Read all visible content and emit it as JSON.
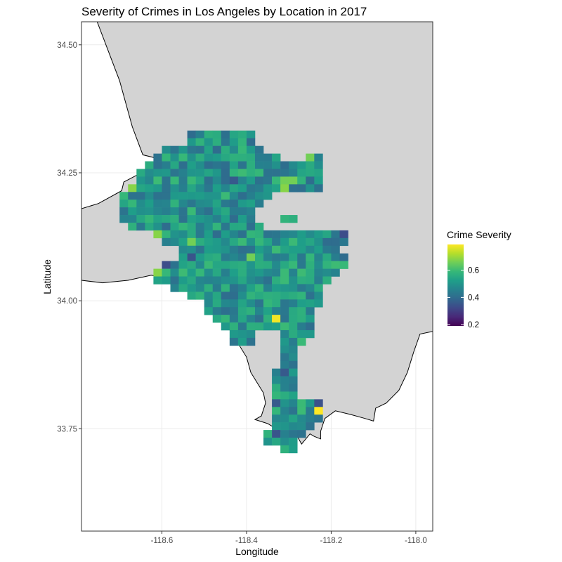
{
  "chart_data": {
    "type": "heatmap",
    "title": "Severity of Crimes in Los Angeles by Location in 2017",
    "xlabel": "Longitude",
    "ylabel": "Latitude",
    "xlim": [
      -118.79,
      -117.96
    ],
    "ylim": [
      33.55,
      34.545
    ],
    "x_ticks": [
      -118.6,
      -118.4,
      -118.2,
      -118.0
    ],
    "x_tick_labels": [
      "-118.6",
      "-118.4",
      "-118.2",
      "-118.0"
    ],
    "y_ticks": [
      33.75,
      34.0,
      34.25,
      34.5
    ],
    "y_tick_labels": [
      "33.75",
      "34.00",
      "34.25",
      "34.50"
    ],
    "grid": true,
    "legend": {
      "title": "Crime Severity",
      "position": "right",
      "min": 0.19,
      "max": 0.79,
      "ticks": [
        0.2,
        0.4,
        0.6
      ],
      "tick_labels": [
        "0.2",
        "0.4",
        "0.6"
      ],
      "palette": [
        "#440154",
        "#482878",
        "#3e4989",
        "#31688e",
        "#26828e",
        "#1f9e89",
        "#35b779",
        "#6ece58",
        "#b5de2b",
        "#fde725"
      ]
    },
    "cell_size_deg": [
      0.02,
      0.015
    ],
    "region_rows": [
      {
        "lat": 34.325,
        "lon_ranges": [
          [
            -118.53,
            -118.39
          ]
        ]
      },
      {
        "lat": 34.31,
        "lon_ranges": [
          [
            -118.53,
            -118.39
          ]
        ]
      },
      {
        "lat": 34.295,
        "lon_ranges": [
          [
            -118.59,
            -118.37
          ]
        ]
      },
      {
        "lat": 34.28,
        "lon_ranges": [
          [
            -118.61,
            -118.33
          ],
          [
            -118.25,
            -118.23
          ]
        ]
      },
      {
        "lat": 34.265,
        "lon_ranges": [
          [
            -118.63,
            -118.23
          ]
        ]
      },
      {
        "lat": 34.25,
        "lon_ranges": [
          [
            -118.65,
            -118.23
          ]
        ]
      },
      {
        "lat": 34.235,
        "lon_ranges": [
          [
            -118.65,
            -118.23
          ]
        ]
      },
      {
        "lat": 34.22,
        "lon_ranges": [
          [
            -118.67,
            -118.23
          ]
        ]
      },
      {
        "lat": 34.205,
        "lon_ranges": [
          [
            -118.69,
            -118.35
          ]
        ]
      },
      {
        "lat": 34.19,
        "lon_ranges": [
          [
            -118.69,
            -118.37
          ]
        ]
      },
      {
        "lat": 34.175,
        "lon_ranges": [
          [
            -118.69,
            -118.39
          ]
        ]
      },
      {
        "lat": 34.16,
        "lon_ranges": [
          [
            -118.69,
            -118.39
          ],
          [
            -118.31,
            -118.29
          ]
        ]
      },
      {
        "lat": 34.145,
        "lon_ranges": [
          [
            -118.67,
            -118.37
          ]
        ]
      },
      {
        "lat": 34.13,
        "lon_ranges": [
          [
            -118.61,
            -118.17
          ]
        ]
      },
      {
        "lat": 34.115,
        "lon_ranges": [
          [
            -118.59,
            -118.17
          ]
        ]
      },
      {
        "lat": 34.1,
        "lon_ranges": [
          [
            -118.55,
            -118.19
          ]
        ]
      },
      {
        "lat": 34.085,
        "lon_ranges": [
          [
            -118.55,
            -118.17
          ]
        ]
      },
      {
        "lat": 34.07,
        "lon_ranges": [
          [
            -118.59,
            -118.17
          ]
        ]
      },
      {
        "lat": 34.055,
        "lon_ranges": [
          [
            -118.61,
            -118.19
          ]
        ]
      },
      {
        "lat": 34.04,
        "lon_ranges": [
          [
            -118.61,
            -118.21
          ]
        ]
      },
      {
        "lat": 34.025,
        "lon_ranges": [
          [
            -118.57,
            -118.23
          ]
        ]
      },
      {
        "lat": 34.01,
        "lon_ranges": [
          [
            -118.53,
            -118.23
          ]
        ]
      },
      {
        "lat": 33.995,
        "lon_ranges": [
          [
            -118.49,
            -118.23
          ]
        ]
      },
      {
        "lat": 33.98,
        "lon_ranges": [
          [
            -118.49,
            -118.25
          ]
        ]
      },
      {
        "lat": 33.965,
        "lon_ranges": [
          [
            -118.47,
            -118.25
          ]
        ]
      },
      {
        "lat": 33.95,
        "lon_ranges": [
          [
            -118.45,
            -118.25
          ]
        ]
      },
      {
        "lat": 33.935,
        "lon_ranges": [
          [
            -118.43,
            -118.39
          ],
          [
            -118.31,
            -118.25
          ]
        ]
      },
      {
        "lat": 33.92,
        "lon_ranges": [
          [
            -118.43,
            -118.39
          ],
          [
            -118.31,
            -118.27
          ]
        ]
      },
      {
        "lat": 33.905,
        "lon_ranges": [
          [
            -118.31,
            -118.29
          ]
        ]
      },
      {
        "lat": 33.89,
        "lon_ranges": [
          [
            -118.31,
            -118.29
          ]
        ]
      },
      {
        "lat": 33.875,
        "lon_ranges": [
          [
            -118.31,
            -118.29
          ]
        ]
      },
      {
        "lat": 33.86,
        "lon_ranges": [
          [
            -118.33,
            -118.29
          ]
        ]
      },
      {
        "lat": 33.845,
        "lon_ranges": [
          [
            -118.33,
            -118.29
          ]
        ]
      },
      {
        "lat": 33.83,
        "lon_ranges": [
          [
            -118.33,
            -118.29
          ]
        ]
      },
      {
        "lat": 33.815,
        "lon_ranges": [
          [
            -118.33,
            -118.29
          ]
        ]
      },
      {
        "lat": 33.8,
        "lon_ranges": [
          [
            -118.33,
            -118.23
          ]
        ]
      },
      {
        "lat": 33.785,
        "lon_ranges": [
          [
            -118.33,
            -118.23
          ]
        ]
      },
      {
        "lat": 33.77,
        "lon_ranges": [
          [
            -118.33,
            -118.23
          ]
        ]
      },
      {
        "lat": 33.755,
        "lon_ranges": [
          [
            -118.33,
            -118.25
          ]
        ]
      },
      {
        "lat": 33.74,
        "lon_ranges": [
          [
            -118.35,
            -118.27
          ]
        ]
      },
      {
        "lat": 33.725,
        "lon_ranges": [
          [
            -118.35,
            -118.29
          ]
        ]
      },
      {
        "lat": 33.71,
        "lon_ranges": [
          [
            -118.31,
            -118.29
          ]
        ]
      }
    ],
    "highlight_cells": [
      {
        "lon": -118.23,
        "lat": 33.785,
        "value": 0.79
      },
      {
        "lon": -118.33,
        "lat": 33.965,
        "value": 0.78
      },
      {
        "lon": -118.61,
        "lat": 34.085,
        "value": 0.19
      },
      {
        "lon": -118.59,
        "lat": 34.07,
        "value": 0.33
      },
      {
        "lon": -118.53,
        "lat": 34.085,
        "value": 0.35
      },
      {
        "lon": -118.61,
        "lat": 34.055,
        "value": 0.68
      },
      {
        "lon": -118.61,
        "lat": 34.13,
        "value": 0.68
      },
      {
        "lon": -118.67,
        "lat": 34.22,
        "value": 0.68
      },
      {
        "lon": -118.25,
        "lat": 34.28,
        "value": 0.66
      },
      {
        "lon": -118.31,
        "lat": 34.235,
        "value": 0.66
      },
      {
        "lon": -118.29,
        "lat": 34.235,
        "value": 0.66
      },
      {
        "lon": -118.31,
        "lat": 34.22,
        "value": 0.68
      },
      {
        "lon": -118.39,
        "lat": 34.085,
        "value": 0.66
      },
      {
        "lon": -118.23,
        "lat": 33.845,
        "value": 0.68
      },
      {
        "lon": -118.17,
        "lat": 34.13,
        "value": 0.33
      },
      {
        "lon": -118.23,
        "lat": 33.8,
        "value": 0.34
      },
      {
        "lon": -118.21,
        "lat": 33.8,
        "value": 0.32
      },
      {
        "lon": -118.23,
        "lat": 33.74,
        "value": 0.32
      },
      {
        "lon": -118.33,
        "lat": 33.74,
        "value": 0.35
      },
      {
        "lon": -118.53,
        "lat": 34.115,
        "value": 0.66
      },
      {
        "lon": -118.43,
        "lat": 34.235,
        "value": 0.36
      },
      {
        "lon": -118.39,
        "lat": 34.28,
        "value": 0.56
      },
      {
        "lon": -118.31,
        "lat": 33.86,
        "value": 0.36
      },
      {
        "lon": -118.33,
        "lat": 33.8,
        "value": 0.36
      }
    ],
    "default_value_range": [
      0.4,
      0.6
    ],
    "land_shape": [
      [
        -118.753,
        34.545
      ],
      [
        -118.7,
        34.43
      ],
      [
        -118.67,
        34.34
      ],
      [
        -118.645,
        34.285
      ],
      [
        -118.62,
        34.28
      ],
      [
        -118.6,
        34.262
      ],
      [
        -118.6,
        34.255
      ],
      [
        -118.66,
        34.245
      ],
      [
        -118.69,
        34.232
      ],
      [
        -118.695,
        34.215
      ],
      [
        -118.75,
        34.19
      ],
      [
        -118.79,
        34.18
      ],
      [
        -118.79,
        34.04
      ],
      [
        -118.74,
        34.035
      ],
      [
        -118.68,
        34.04
      ],
      [
        -118.625,
        34.05
      ],
      [
        -118.56,
        34.04
      ],
      [
        -118.52,
        34.03
      ],
      [
        -118.48,
        34.02
      ],
      [
        -118.45,
        33.99
      ],
      [
        -118.43,
        33.93
      ],
      [
        -118.4,
        33.89
      ],
      [
        -118.39,
        33.86
      ],
      [
        -118.375,
        33.84
      ],
      [
        -118.36,
        33.82
      ],
      [
        -118.355,
        33.8
      ],
      [
        -118.365,
        33.775
      ],
      [
        -118.38,
        33.768
      ],
      [
        -118.35,
        33.76
      ],
      [
        -118.32,
        33.745
      ],
      [
        -118.28,
        33.735
      ],
      [
        -118.27,
        33.72
      ],
      [
        -118.25,
        33.74
      ],
      [
        -118.24,
        33.735
      ],
      [
        -118.225,
        33.73
      ],
      [
        -118.225,
        33.745
      ],
      [
        -118.215,
        33.77
      ],
      [
        -118.19,
        33.785
      ],
      [
        -118.155,
        33.778
      ],
      [
        -118.12,
        33.77
      ],
      [
        -118.1,
        33.765
      ],
      [
        -118.095,
        33.79
      ],
      [
        -118.07,
        33.8
      ],
      [
        -118.04,
        33.825
      ],
      [
        -118.02,
        33.86
      ],
      [
        -118.005,
        33.9
      ],
      [
        -117.99,
        33.935
      ],
      [
        -117.96,
        33.94
      ],
      [
        -117.96,
        34.545
      ]
    ]
  }
}
